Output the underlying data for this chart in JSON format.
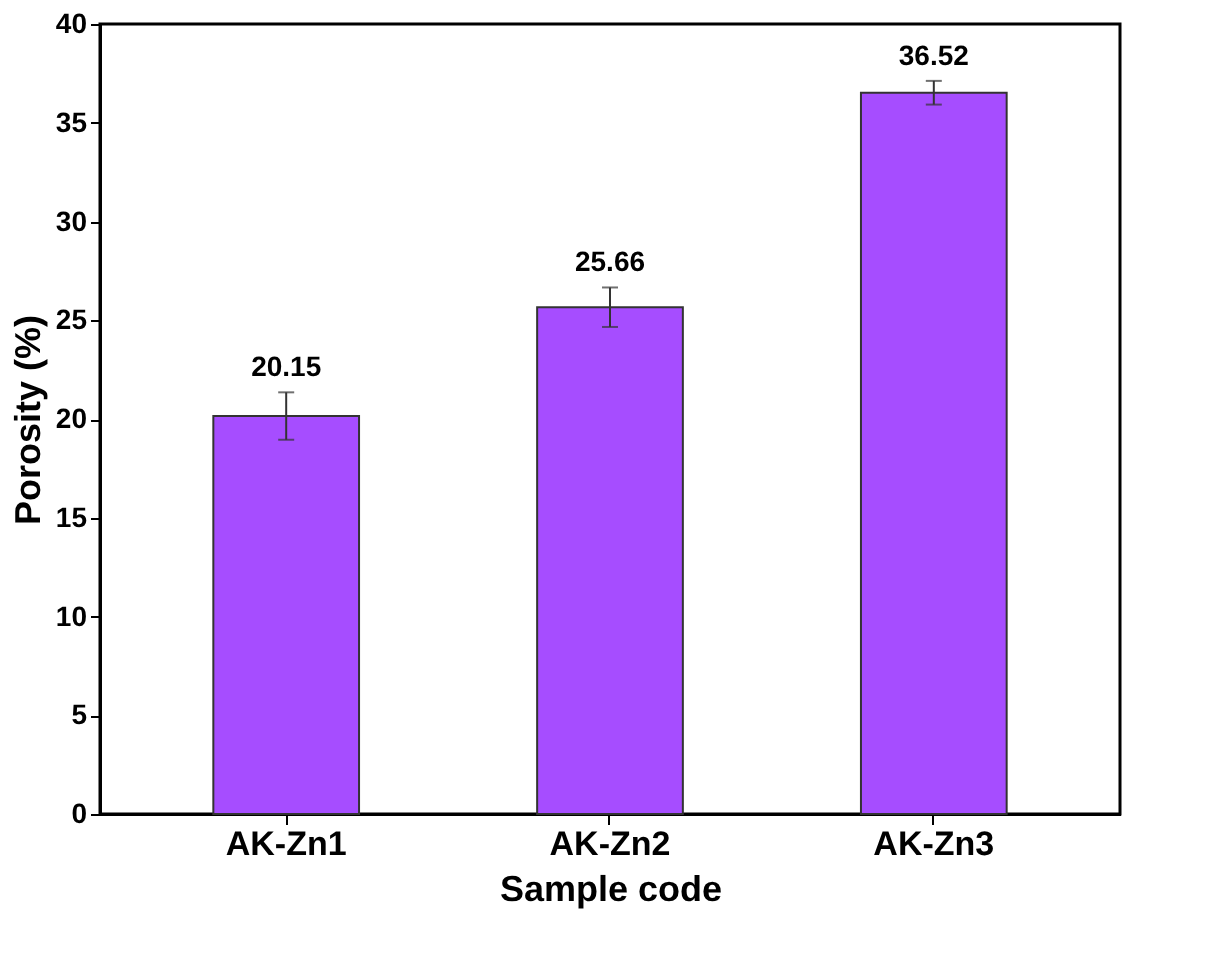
{
  "chart_data": {
    "type": "bar",
    "xlabel": "Sample code",
    "ylabel": "Porosity (%)",
    "categories": [
      "AK-Zn1",
      "AK-Zn2",
      "AK-Zn3"
    ],
    "values": [
      20.15,
      25.66,
      36.52
    ],
    "errors": [
      1.2,
      1.0,
      0.6
    ],
    "color": "#a64dff",
    "ylim": [
      0,
      40
    ],
    "yticks": [
      0,
      5,
      10,
      15,
      20,
      25,
      30,
      35,
      40
    ],
    "data_labels": true,
    "grid": false
  }
}
